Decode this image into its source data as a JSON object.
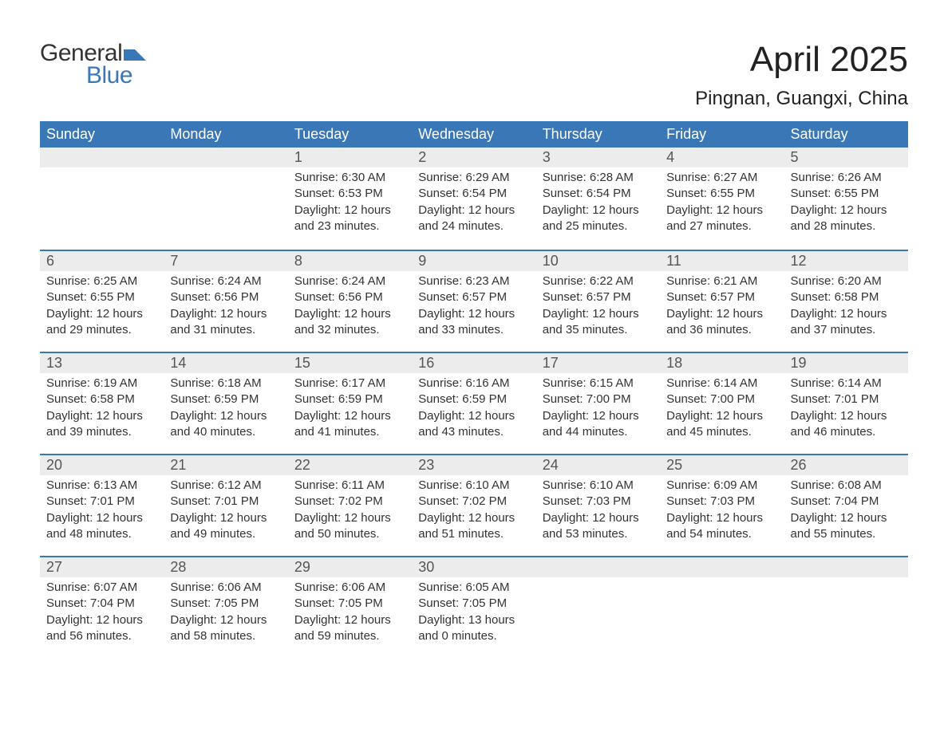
{
  "brand": {
    "word1": "General",
    "word2": "Blue",
    "flag_color": "#3a77b7",
    "word1_color": "#333333",
    "word2_color": "#3a77b7"
  },
  "header": {
    "month_title": "April 2025",
    "location": "Pingnan, Guangxi, China"
  },
  "colors": {
    "header_bg": "#3a77b7",
    "header_text": "#ffffff",
    "daynum_bg": "#ececec",
    "daynum_text": "#555555",
    "body_text": "#333333",
    "week_divider": "#3a77b7",
    "page_bg": "#ffffff"
  },
  "typography": {
    "month_title_fontsize": 44,
    "location_fontsize": 24,
    "weekday_fontsize": 18,
    "daynum_fontsize": 18,
    "content_fontsize": 15
  },
  "calendar": {
    "type": "table",
    "weekdays": [
      "Sunday",
      "Monday",
      "Tuesday",
      "Wednesday",
      "Thursday",
      "Friday",
      "Saturday"
    ],
    "weeks": [
      [
        {
          "day": "",
          "sunrise": "",
          "sunset": "",
          "daylight": ""
        },
        {
          "day": "",
          "sunrise": "",
          "sunset": "",
          "daylight": ""
        },
        {
          "day": "1",
          "sunrise": "Sunrise: 6:30 AM",
          "sunset": "Sunset: 6:53 PM",
          "daylight": "Daylight: 12 hours and 23 minutes."
        },
        {
          "day": "2",
          "sunrise": "Sunrise: 6:29 AM",
          "sunset": "Sunset: 6:54 PM",
          "daylight": "Daylight: 12 hours and 24 minutes."
        },
        {
          "day": "3",
          "sunrise": "Sunrise: 6:28 AM",
          "sunset": "Sunset: 6:54 PM",
          "daylight": "Daylight: 12 hours and 25 minutes."
        },
        {
          "day": "4",
          "sunrise": "Sunrise: 6:27 AM",
          "sunset": "Sunset: 6:55 PM",
          "daylight": "Daylight: 12 hours and 27 minutes."
        },
        {
          "day": "5",
          "sunrise": "Sunrise: 6:26 AM",
          "sunset": "Sunset: 6:55 PM",
          "daylight": "Daylight: 12 hours and 28 minutes."
        }
      ],
      [
        {
          "day": "6",
          "sunrise": "Sunrise: 6:25 AM",
          "sunset": "Sunset: 6:55 PM",
          "daylight": "Daylight: 12 hours and 29 minutes."
        },
        {
          "day": "7",
          "sunrise": "Sunrise: 6:24 AM",
          "sunset": "Sunset: 6:56 PM",
          "daylight": "Daylight: 12 hours and 31 minutes."
        },
        {
          "day": "8",
          "sunrise": "Sunrise: 6:24 AM",
          "sunset": "Sunset: 6:56 PM",
          "daylight": "Daylight: 12 hours and 32 minutes."
        },
        {
          "day": "9",
          "sunrise": "Sunrise: 6:23 AM",
          "sunset": "Sunset: 6:57 PM",
          "daylight": "Daylight: 12 hours and 33 minutes."
        },
        {
          "day": "10",
          "sunrise": "Sunrise: 6:22 AM",
          "sunset": "Sunset: 6:57 PM",
          "daylight": "Daylight: 12 hours and 35 minutes."
        },
        {
          "day": "11",
          "sunrise": "Sunrise: 6:21 AM",
          "sunset": "Sunset: 6:57 PM",
          "daylight": "Daylight: 12 hours and 36 minutes."
        },
        {
          "day": "12",
          "sunrise": "Sunrise: 6:20 AM",
          "sunset": "Sunset: 6:58 PM",
          "daylight": "Daylight: 12 hours and 37 minutes."
        }
      ],
      [
        {
          "day": "13",
          "sunrise": "Sunrise: 6:19 AM",
          "sunset": "Sunset: 6:58 PM",
          "daylight": "Daylight: 12 hours and 39 minutes."
        },
        {
          "day": "14",
          "sunrise": "Sunrise: 6:18 AM",
          "sunset": "Sunset: 6:59 PM",
          "daylight": "Daylight: 12 hours and 40 minutes."
        },
        {
          "day": "15",
          "sunrise": "Sunrise: 6:17 AM",
          "sunset": "Sunset: 6:59 PM",
          "daylight": "Daylight: 12 hours and 41 minutes."
        },
        {
          "day": "16",
          "sunrise": "Sunrise: 6:16 AM",
          "sunset": "Sunset: 6:59 PM",
          "daylight": "Daylight: 12 hours and 43 minutes."
        },
        {
          "day": "17",
          "sunrise": "Sunrise: 6:15 AM",
          "sunset": "Sunset: 7:00 PM",
          "daylight": "Daylight: 12 hours and 44 minutes."
        },
        {
          "day": "18",
          "sunrise": "Sunrise: 6:14 AM",
          "sunset": "Sunset: 7:00 PM",
          "daylight": "Daylight: 12 hours and 45 minutes."
        },
        {
          "day": "19",
          "sunrise": "Sunrise: 6:14 AM",
          "sunset": "Sunset: 7:01 PM",
          "daylight": "Daylight: 12 hours and 46 minutes."
        }
      ],
      [
        {
          "day": "20",
          "sunrise": "Sunrise: 6:13 AM",
          "sunset": "Sunset: 7:01 PM",
          "daylight": "Daylight: 12 hours and 48 minutes."
        },
        {
          "day": "21",
          "sunrise": "Sunrise: 6:12 AM",
          "sunset": "Sunset: 7:01 PM",
          "daylight": "Daylight: 12 hours and 49 minutes."
        },
        {
          "day": "22",
          "sunrise": "Sunrise: 6:11 AM",
          "sunset": "Sunset: 7:02 PM",
          "daylight": "Daylight: 12 hours and 50 minutes."
        },
        {
          "day": "23",
          "sunrise": "Sunrise: 6:10 AM",
          "sunset": "Sunset: 7:02 PM",
          "daylight": "Daylight: 12 hours and 51 minutes."
        },
        {
          "day": "24",
          "sunrise": "Sunrise: 6:10 AM",
          "sunset": "Sunset: 7:03 PM",
          "daylight": "Daylight: 12 hours and 53 minutes."
        },
        {
          "day": "25",
          "sunrise": "Sunrise: 6:09 AM",
          "sunset": "Sunset: 7:03 PM",
          "daylight": "Daylight: 12 hours and 54 minutes."
        },
        {
          "day": "26",
          "sunrise": "Sunrise: 6:08 AM",
          "sunset": "Sunset: 7:04 PM",
          "daylight": "Daylight: 12 hours and 55 minutes."
        }
      ],
      [
        {
          "day": "27",
          "sunrise": "Sunrise: 6:07 AM",
          "sunset": "Sunset: 7:04 PM",
          "daylight": "Daylight: 12 hours and 56 minutes."
        },
        {
          "day": "28",
          "sunrise": "Sunrise: 6:06 AM",
          "sunset": "Sunset: 7:05 PM",
          "daylight": "Daylight: 12 hours and 58 minutes."
        },
        {
          "day": "29",
          "sunrise": "Sunrise: 6:06 AM",
          "sunset": "Sunset: 7:05 PM",
          "daylight": "Daylight: 12 hours and 59 minutes."
        },
        {
          "day": "30",
          "sunrise": "Sunrise: 6:05 AM",
          "sunset": "Sunset: 7:05 PM",
          "daylight": "Daylight: 13 hours and 0 minutes."
        },
        {
          "day": "",
          "sunrise": "",
          "sunset": "",
          "daylight": ""
        },
        {
          "day": "",
          "sunrise": "",
          "sunset": "",
          "daylight": ""
        },
        {
          "day": "",
          "sunrise": "",
          "sunset": "",
          "daylight": ""
        }
      ]
    ]
  }
}
